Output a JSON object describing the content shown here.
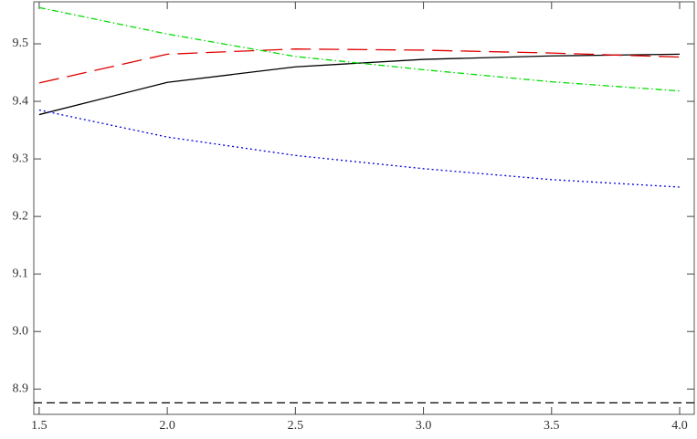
{
  "chart_data": {
    "type": "line",
    "x": [
      1.5,
      2.0,
      2.5,
      3.0,
      3.5,
      4.0
    ],
    "xlim": [
      1.479,
      4.057
    ],
    "ylim": [
      8.856,
      9.573
    ],
    "xticks": [
      1.5,
      {
        "value": 2.0,
        "label": "2.0"
      },
      2.5,
      {
        "value": 3.0,
        "label": "3.0"
      },
      3.5,
      {
        "value": 4.0,
        "label": "4.0"
      }
    ],
    "yticks": [
      8.9,
      {
        "value": 9.0,
        "label": "9.0"
      },
      9.1,
      9.2,
      9.3,
      9.4,
      9.5
    ],
    "grid": false,
    "series": [
      {
        "color": "#000000",
        "dash": "none",
        "values": [
          9.377,
          9.433,
          9.46,
          9.473,
          9.479,
          9.482
        ]
      },
      {
        "color": "#e00000",
        "dash": "22,9",
        "values": [
          9.432,
          9.482,
          9.491,
          9.489,
          9.484,
          9.477
        ]
      },
      {
        "color": "#00dd00",
        "dash": "7,3,1.5,3",
        "values": [
          9.563,
          9.517,
          9.478,
          9.455,
          9.434,
          9.418
        ]
      },
      {
        "color": "#0000dd",
        "dash": "2,3",
        "values": [
          9.385,
          9.338,
          9.306,
          9.283,
          9.264,
          9.251
        ]
      },
      {
        "color": "#000000",
        "dash": "9,5",
        "x": [
          1.479,
          4.057
        ],
        "values": [
          8.876,
          8.876
        ]
      }
    ]
  }
}
